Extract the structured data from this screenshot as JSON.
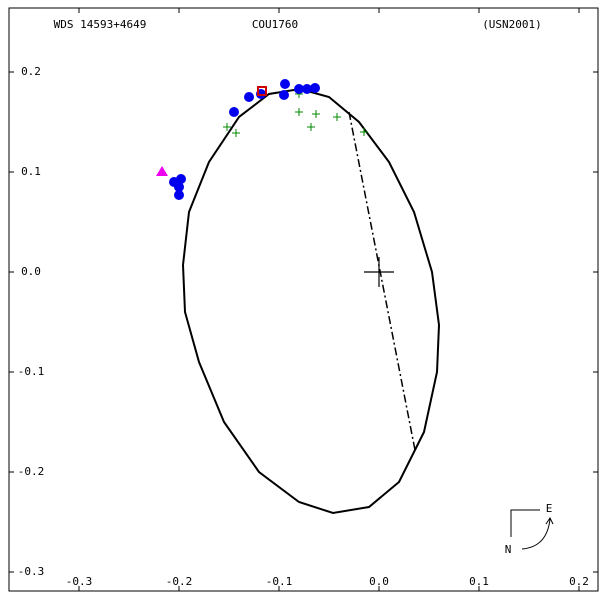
{
  "chart_data": {
    "type": "scatter",
    "labels": [
      "WDS 14593+4649",
      "COU1760",
      "(USN2001)"
    ],
    "compass": [
      "E",
      "N"
    ],
    "xlim": [
      -0.37,
      0.219
    ],
    "ylim": [
      -0.319,
      0.264
    ],
    "xticks": [
      -0.3,
      -0.2,
      -0.1,
      {
        "value": 0,
        "label": "0.0"
      },
      0.1,
      0.2
    ],
    "yticks": [
      -0.3,
      -0.2,
      -0.1,
      {
        "value": 0,
        "label": "0.0"
      },
      0.1,
      0.2
    ],
    "series": [
      {
        "marker": "line",
        "color": "#000000",
        "x": [
          -0.196,
          -0.19,
          -0.17,
          -0.14,
          -0.11,
          -0.079,
          -0.05,
          -0.02,
          0.01,
          0.035,
          0.053,
          0.06,
          0.058,
          0.045,
          0.02,
          -0.01,
          -0.046,
          -0.08,
          -0.12,
          -0.155,
          -0.18,
          -0.194,
          -0.196
        ],
        "values": [
          0.007,
          0.06,
          0.11,
          0.155,
          0.178,
          0.183,
          0.175,
          0.15,
          0.11,
          0.06,
          0.0,
          -0.053,
          -0.1,
          -0.16,
          -0.21,
          -0.235,
          -0.241,
          -0.23,
          -0.2,
          -0.15,
          -0.09,
          -0.04,
          0.007
        ]
      },
      {
        "marker": "dashdot",
        "color": "#000000",
        "x": [
          -0.03,
          0.036
        ],
        "values": [
          0.16,
          -0.178
        ]
      },
      {
        "marker": "plus",
        "color": "#008800",
        "x": [
          -0.152,
          -0.143,
          -0.08,
          -0.068,
          -0.063,
          -0.042,
          -0.015,
          -0.08
        ],
        "values": [
          0.145,
          0.139,
          0.16,
          0.145,
          0.158,
          0.155,
          0.14,
          0.178
        ]
      },
      {
        "marker": "circle",
        "color": "#0000ee",
        "x": [
          -0.205,
          -0.2,
          -0.198,
          -0.2,
          -0.145,
          -0.13,
          -0.118,
          -0.095,
          -0.094,
          -0.08,
          -0.072,
          -0.064
        ],
        "values": [
          0.09,
          0.085,
          0.093,
          0.077,
          0.16,
          0.175,
          0.178,
          0.177,
          0.188,
          0.183,
          0.183,
          0.184
        ]
      },
      {
        "marker": "triangle",
        "color": "#ee00ee",
        "x": [
          -0.217
        ],
        "values": [
          0.1
        ]
      },
      {
        "marker": "square",
        "color": "#cc0000",
        "x": [
          -0.117
        ],
        "values": [
          0.181
        ]
      }
    ]
  }
}
